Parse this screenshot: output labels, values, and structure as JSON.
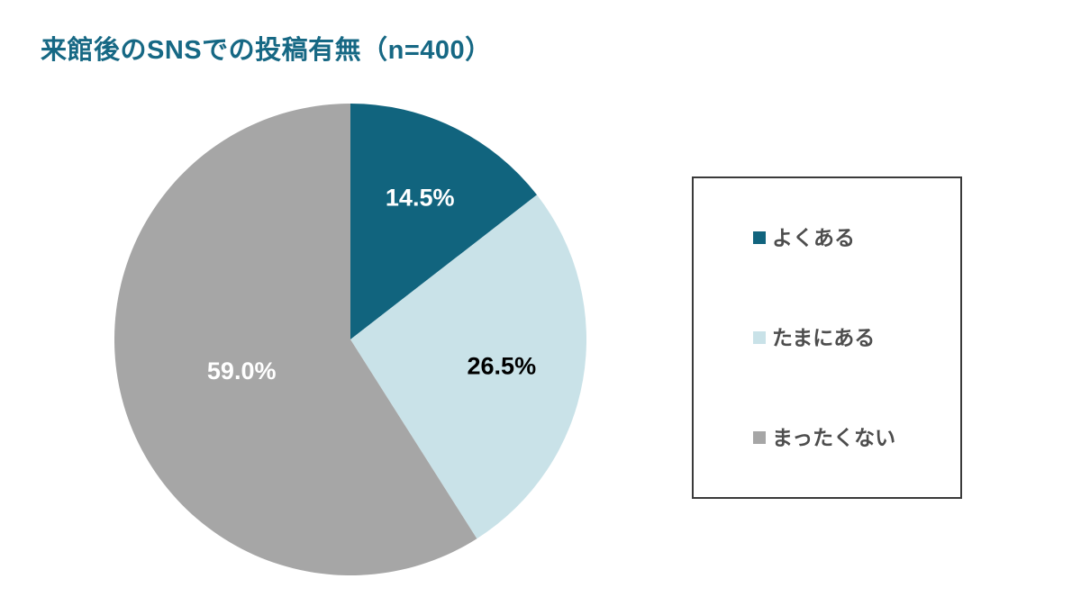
{
  "title": {
    "text": "来館後のSNSでの投稿有無（n=400）",
    "color": "#166884"
  },
  "chart_data": {
    "type": "pie",
    "title": "来館後のSNSでの投稿有無（n=400）",
    "sample_size": 400,
    "categories": [
      "よくある",
      "たまにある",
      "まったくない"
    ],
    "values": [
      14.5,
      26.5,
      59.0
    ],
    "unit": "%",
    "slice_labels": [
      "14.5%",
      "26.5%",
      "59.0%"
    ],
    "slice_colors": [
      "#11647E",
      "#C9E2E8",
      "#A6A6A6"
    ],
    "slice_label_colors": [
      "#FFFFFF",
      "#000000",
      "#FFFFFF"
    ],
    "label_radius_fractions": [
      0.67,
      0.65,
      0.48
    ],
    "start_angle_deg": 0,
    "direction": "clockwise",
    "legend_position": "right",
    "background": "#FFFFFF"
  },
  "legend": {
    "items": [
      {
        "label": "よくある",
        "color": "#11647E"
      },
      {
        "label": "たまにある",
        "color": "#C9E2E8"
      },
      {
        "label": "まったくない",
        "color": "#A6A6A6"
      }
    ],
    "text_color": "#4D4D4D",
    "border_color": "#3A3A3A"
  }
}
